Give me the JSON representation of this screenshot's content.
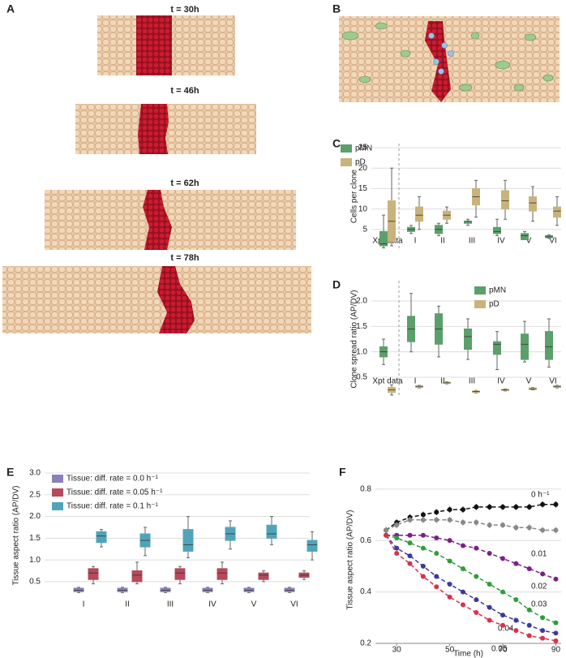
{
  "panels": {
    "A": {
      "label": "A",
      "times": [
        "t = 30h",
        "t = 46h",
        "t = 62h",
        "t = 78h"
      ]
    },
    "B": {
      "label": "B"
    }
  },
  "chart_data": [
    {
      "type": "box",
      "label": "C",
      "ylabel": "Cells per clone",
      "categories": [
        "Xpt data",
        "I",
        "II",
        "III",
        "IV",
        "V",
        "VI"
      ],
      "ylim": [
        0,
        26
      ],
      "yticks": [
        5,
        10,
        15,
        20,
        25
      ],
      "grid": true,
      "legend": "upper left",
      "series": [
        {
          "name": "pMN",
          "color": "#5b9f6b",
          "min": [
            0.5,
            4,
            3.5,
            6,
            3.5,
            2.5,
            2.8
          ],
          "q1": [
            1,
            4.5,
            4,
            6.5,
            4,
            2.5,
            3
          ],
          "median": [
            1.5,
            5,
            5,
            7,
            4.5,
            3.5,
            3.2
          ],
          "q3": [
            4.5,
            5.5,
            6,
            7,
            5.5,
            4,
            3.5
          ],
          "max": [
            8.5,
            6,
            6.5,
            7.5,
            7.5,
            4.5,
            3.7
          ]
        },
        {
          "name": "pD",
          "color": "#c8b37c",
          "min": [
            1,
            5,
            6.5,
            8,
            7.5,
            7,
            6
          ],
          "q1": [
            2,
            7,
            7.5,
            11,
            10,
            9.5,
            8
          ],
          "median": [
            7,
            8.5,
            8.5,
            13,
            12,
            11.5,
            9.5
          ],
          "q3": [
            12,
            10.5,
            9.5,
            15,
            14.5,
            13,
            10.5
          ],
          "max": [
            20,
            13,
            10.5,
            17,
            17,
            15.5,
            13
          ]
        }
      ]
    },
    {
      "type": "box",
      "label": "D",
      "ylabel": "Clone spread ratio (AP/DV)",
      "categories": [
        "Xpt data",
        "I",
        "II",
        "III",
        "IV",
        "V",
        "VI"
      ],
      "ylim": [
        0.1,
        2.4
      ],
      "yticks": [
        0.5,
        {
          "value": 1,
          "label": "1.0"
        },
        1.5,
        {
          "value": 2,
          "label": "2.0"
        }
      ],
      "grid": true,
      "legend": "upper right",
      "series": [
        {
          "name": "pMN",
          "color": "#5b9f6b",
          "min": [
            0.75,
            1,
            0.9,
            0.85,
            0.65,
            0.8,
            0.7
          ],
          "q1": [
            0.9,
            1.2,
            1.15,
            1.05,
            0.95,
            0.85,
            0.85
          ],
          "median": [
            1,
            1.45,
            1.45,
            1.3,
            1.15,
            1.15,
            1.1
          ],
          "q3": [
            1.1,
            1.7,
            1.75,
            1.45,
            1.2,
            1.35,
            1.4
          ],
          "max": [
            1.25,
            2.15,
            1.9,
            1.65,
            1.4,
            1.6,
            1.65
          ]
        },
        {
          "name": "pD",
          "color": "#c8b37c",
          "min": [
            0.15,
            0.29,
            0.37,
            0.19,
            0.23,
            0.25,
            0.29
          ],
          "q1": [
            0.2,
            0.3,
            0.38,
            0.2,
            0.24,
            0.26,
            0.3
          ],
          "median": [
            0.25,
            0.32,
            0.39,
            0.22,
            0.25,
            0.27,
            0.32
          ],
          "q3": [
            0.3,
            0.33,
            0.4,
            0.23,
            0.26,
            0.29,
            0.33
          ],
          "max": [
            0.35,
            0.34,
            0.41,
            0.24,
            0.27,
            0.3,
            0.34
          ]
        }
      ]
    },
    {
      "type": "box",
      "label": "E",
      "ylabel": "Tissue aspect ratio (AP/DV)",
      "categories": [
        "I",
        "II",
        "III",
        "IV",
        "V",
        "VI"
      ],
      "ylim": [
        0.2,
        3.0
      ],
      "yticks": [
        0.5,
        {
          "value": 1,
          "label": "1.0"
        },
        1.5,
        {
          "value": 2,
          "label": "2.0"
        },
        2.5,
        {
          "value": 3,
          "label": "3.0"
        }
      ],
      "grid": true,
      "legend": "upper left",
      "series": [
        {
          "name": "Tissue: diff. rate = 0.0 h⁻¹",
          "color": "#8b80b9",
          "min": [
            0.25,
            0.25,
            0.25,
            0.25,
            0.25,
            0.25
          ],
          "q1": [
            0.27,
            0.27,
            0.27,
            0.27,
            0.27,
            0.27
          ],
          "median": [
            0.3,
            0.3,
            0.3,
            0.3,
            0.3,
            0.3
          ],
          "q3": [
            0.35,
            0.35,
            0.35,
            0.35,
            0.35,
            0.35
          ],
          "max": [
            0.37,
            0.37,
            0.37,
            0.37,
            0.37,
            0.37
          ]
        },
        {
          "name": "Tissue: diff. rate = 0.05 h⁻¹",
          "color": "#b44a5b",
          "min": [
            0.45,
            0.45,
            0.45,
            0.45,
            0.5,
            0.55
          ],
          "q1": [
            0.55,
            0.5,
            0.55,
            0.55,
            0.55,
            0.6
          ],
          "median": [
            0.7,
            0.65,
            0.7,
            0.7,
            0.65,
            0.65
          ],
          "q3": [
            0.8,
            0.75,
            0.8,
            0.8,
            0.7,
            0.7
          ],
          "max": [
            0.85,
            0.95,
            0.85,
            0.95,
            0.75,
            0.75
          ]
        },
        {
          "name": "Tissue: diff. rate = 0.1 h⁻¹",
          "color": "#50a4b9",
          "min": [
            1.3,
            1.1,
            1.05,
            1.25,
            1.35,
            1
          ],
          "q1": [
            1.4,
            1.3,
            1.2,
            1.45,
            1.5,
            1.2
          ],
          "median": [
            1.55,
            1.45,
            1.35,
            1.6,
            1.6,
            1.35
          ],
          "q3": [
            1.65,
            1.6,
            1.7,
            1.75,
            1.8,
            1.45
          ],
          "max": [
            1.7,
            1.75,
            2,
            1.9,
            2,
            1.65
          ]
        }
      ]
    },
    {
      "type": "line",
      "label": "F",
      "xlabel": "Time (h)",
      "ylabel": "Tissue aspect ratio (AP/DV)",
      "x": [
        26,
        30,
        35,
        40,
        45,
        50,
        55,
        60,
        65,
        70,
        75,
        80,
        85,
        90
      ],
      "xlim": [
        22,
        92
      ],
      "xticks": [
        30,
        50,
        70,
        90
      ],
      "ylim": [
        0.2,
        0.84
      ],
      "yticks": [
        0.2,
        0.4,
        0.6,
        0.8
      ],
      "grid": true,
      "series": [
        {
          "name": "0 h⁻¹",
          "color": "#111111",
          "values": [
            0.64,
            0.67,
            0.69,
            0.7,
            0.71,
            0.72,
            0.72,
            0.73,
            0.73,
            0.73,
            0.73,
            0.73,
            0.74,
            0.74
          ],
          "errors": [
            0.012,
            0.012,
            0.012,
            0.012,
            0.012,
            0.012,
            0.012,
            0.012,
            0.012,
            0.012,
            0.012,
            0.012,
            0.012,
            0.012
          ]
        },
        {
          "name": "0.01",
          "color": "#888888",
          "values": [
            0.64,
            0.66,
            0.68,
            0.68,
            0.68,
            0.68,
            0.67,
            0.67,
            0.66,
            0.66,
            0.65,
            0.65,
            0.64,
            0.64
          ],
          "errors": [
            0.012,
            0.012,
            0.012,
            0.012,
            0.012,
            0.012,
            0.012,
            0.012,
            0.012,
            0.012,
            0.012,
            0.012,
            0.012,
            0.012
          ]
        },
        {
          "name": "0.02",
          "color": "#7b1f86",
          "values": [
            0.62,
            0.62,
            0.62,
            0.62,
            0.61,
            0.6,
            0.58,
            0.57,
            0.55,
            0.53,
            0.51,
            0.49,
            0.47,
            0.45
          ]
        },
        {
          "name": "0.03",
          "color": "#2e9e3a",
          "values": [
            0.62,
            0.61,
            0.59,
            0.57,
            0.55,
            0.52,
            0.49,
            0.46,
            0.43,
            0.4,
            0.37,
            0.33,
            0.3,
            0.28
          ]
        },
        {
          "name": "0.04",
          "color": "#3a3a9a",
          "values": [
            0.62,
            0.57,
            0.54,
            0.5,
            0.46,
            0.43,
            0.4,
            0.37,
            0.34,
            0.31,
            0.29,
            0.27,
            0.25,
            0.24
          ]
        },
        {
          "name": "0.05",
          "color": "#d8324a",
          "values": [
            0.62,
            0.55,
            0.51,
            0.46,
            0.42,
            0.38,
            0.35,
            0.32,
            0.29,
            0.27,
            0.25,
            0.23,
            0.22,
            0.21
          ]
        }
      ]
    }
  ]
}
